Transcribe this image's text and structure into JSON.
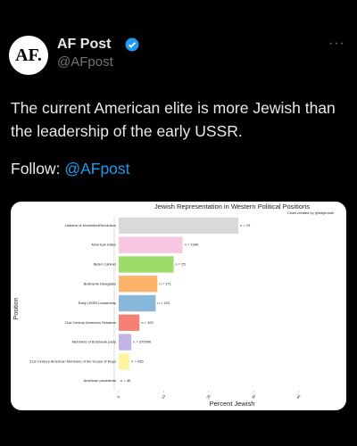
{
  "tweet": {
    "avatar_text": "AF.",
    "author_name": "AF Post",
    "handle": "@AFpost",
    "text": "The current American elite is more Jewish than the leadership of the early USSR.",
    "follow_label": "Follow:",
    "follow_handle": "@AFpost"
  },
  "chart_data": {
    "type": "barh",
    "title": "Jewish Representation in Western Political Positions",
    "subtitle": "Chart created by @lebjernsle",
    "xlabel": "Percent Jewish",
    "ylabel": "Position",
    "categories": [
      "Leaders of NovemberRevolution",
      "American Elites",
      "Biden Cabinet",
      "Bolshevik Delegates",
      "Early USSR Leadership",
      "21st Century American Senators",
      "Members of Bolshevik party",
      "21st Century American Members of the House of Reps",
      "American presidents"
    ],
    "values": [
      26.6,
      14.2,
      12.2,
      8.6,
      8.2,
      4.6,
      2.8,
      2.4,
      0
    ],
    "bar_annotations": [
      "n = 19",
      "n = 1340",
      "n = 25",
      "n = 171",
      "n = 193",
      "n = 100",
      "n = 375000",
      "n = 435",
      "n = 45"
    ],
    "colors": [
      "#d9d9d9",
      "#f7c6e0",
      "#9edc6a",
      "#fdb46a",
      "#87b8dc",
      "#f58073",
      "#c3b4e6",
      "#fdf5a0",
      "#cccccc"
    ],
    "xlim": [
      -1,
      48
    ],
    "xticks": [
      0,
      10,
      20,
      30,
      40
    ]
  }
}
